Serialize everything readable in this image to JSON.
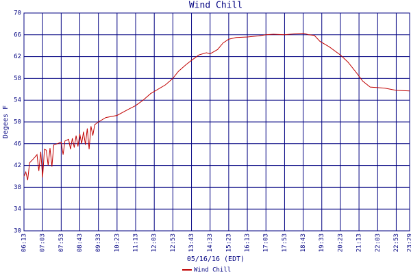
{
  "chart_data": {
    "type": "line",
    "title": "Wind Chill",
    "x_label": "05/16/16 (EDT)",
    "y_label": "Degees F",
    "x": [
      "06:13",
      "06:18",
      "06:23",
      "06:28",
      "06:38",
      "06:48",
      "06:53",
      "06:58",
      "07:03",
      "07:08",
      "07:13",
      "07:18",
      "07:23",
      "07:28",
      "07:33",
      "07:43",
      "07:53",
      "07:58",
      "08:03",
      "08:13",
      "08:18",
      "08:23",
      "08:28",
      "08:33",
      "08:38",
      "08:43",
      "08:48",
      "08:53",
      "08:58",
      "09:03",
      "09:08",
      "09:13",
      "09:18",
      "09:23",
      "09:33",
      "09:53",
      "10:23",
      "10:53",
      "11:13",
      "11:33",
      "11:53",
      "12:13",
      "12:33",
      "12:53",
      "13:08",
      "13:28",
      "13:43",
      "14:03",
      "14:23",
      "14:33",
      "14:53",
      "15:08",
      "15:23",
      "15:43",
      "16:13",
      "16:43",
      "17:03",
      "17:23",
      "17:53",
      "18:23",
      "18:43",
      "18:58",
      "19:13",
      "19:28",
      "19:53",
      "20:23",
      "20:43",
      "21:03",
      "21:23",
      "21:43",
      "22:03",
      "22:23",
      "22:53",
      "23:29"
    ],
    "series": [
      {
        "name": "Wind Chill",
        "color": "#c00000",
        "values": [
          40.0,
          40.8,
          39.3,
          42.5,
          43.2,
          44.0,
          41.0,
          44.5,
          39.8,
          45.0,
          44.8,
          42.0,
          45.2,
          41.8,
          45.8,
          46.0,
          46.3,
          44.0,
          46.5,
          46.8,
          45.0,
          47.0,
          45.3,
          47.5,
          45.5,
          47.8,
          46.0,
          48.2,
          45.8,
          48.8,
          45.0,
          49.2,
          47.5,
          49.5,
          50.0,
          50.8,
          51.2,
          52.3,
          53.0,
          54.0,
          55.2,
          56.0,
          56.8,
          58.0,
          59.3,
          60.5,
          61.3,
          62.3,
          62.7,
          62.5,
          63.3,
          64.5,
          65.2,
          65.5,
          65.6,
          65.8,
          66.0,
          66.1,
          66.0,
          66.2,
          66.3,
          66.0,
          65.9,
          64.8,
          63.8,
          62.3,
          61.0,
          59.3,
          57.5,
          56.4,
          56.3,
          56.2,
          55.8,
          55.7
        ]
      }
    ],
    "xlim": [
      "06:13",
      "23:29"
    ],
    "xticks": [
      "06:13",
      "07:03",
      "07:53",
      "08:43",
      "09:33",
      "10:23",
      "11:13",
      "12:03",
      "12:53",
      "13:43",
      "14:33",
      "15:23",
      "16:13",
      "17:03",
      "17:53",
      "18:43",
      "19:33",
      "20:23",
      "21:13",
      "22:03",
      "22:53",
      "23:29"
    ],
    "ylim": [
      30,
      70
    ],
    "yticks": [
      30,
      34,
      38,
      42,
      46,
      50,
      54,
      58,
      62,
      66,
      70
    ],
    "grid": true,
    "grid_color": "#000080"
  }
}
